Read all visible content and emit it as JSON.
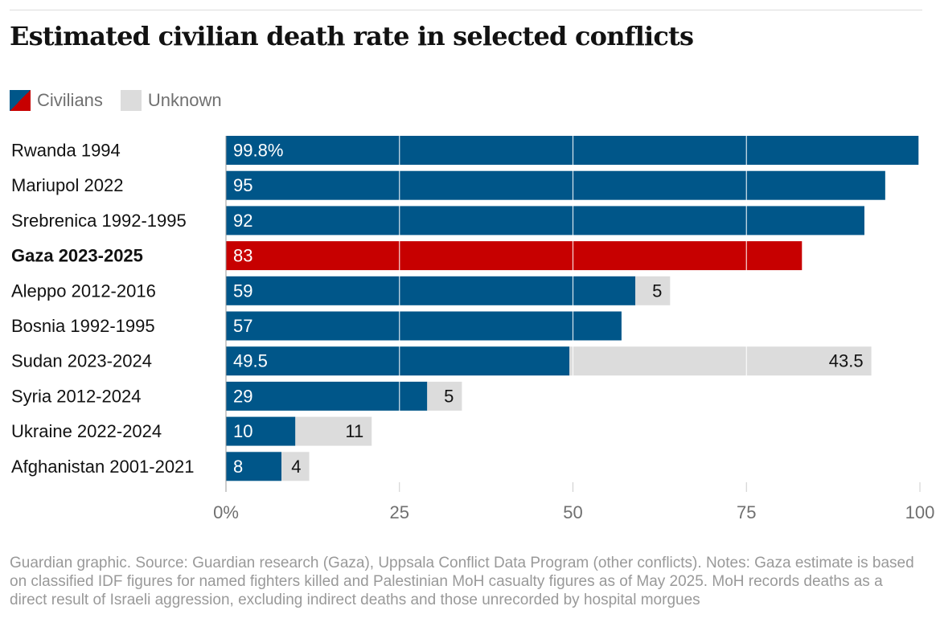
{
  "title": "Estimated civilian death rate in selected conflicts",
  "legend": {
    "civilians": "Civilians",
    "unknown": "Unknown"
  },
  "colors": {
    "civilians": "#005689",
    "highlight": "#c70000",
    "unknown": "#dcdcdc"
  },
  "footer": "Guardian graphic. Source: Guardian research (Gaza), Uppsala Conflict Data Program (other conflicts). Notes: Gaza estimate is based on classified IDF figures for named fighters killed and Palestinian MoH casualty figures as of May 2025. MoH records deaths as a direct result of Israeli aggression, excluding indirect deaths and those unrecorded by hospital morgues",
  "chart_data": {
    "type": "bar",
    "orientation": "horizontal",
    "stacked": true,
    "title": "Estimated civilian death rate in selected conflicts",
    "categories": [
      "Rwanda 1994",
      "Mariupol 2022",
      "Srebrenica 1992-1995",
      "Gaza 2023-2025",
      "Aleppo 2012-2016",
      "Bosnia 1992-1995",
      "Sudan 2023-2024",
      "Syria 2012-2024",
      "Ukraine 2022-2024",
      "Afghanistan 2001-2021"
    ],
    "highlight": "Gaza 2023-2025",
    "series": [
      {
        "name": "Civilians",
        "values": [
          99.8,
          95,
          92,
          83,
          59,
          57,
          49.5,
          29,
          10,
          8
        ],
        "labels": [
          "99.8%",
          "95",
          "92",
          "83",
          "59",
          "57",
          "49.5",
          "29",
          "10",
          "8"
        ]
      },
      {
        "name": "Unknown",
        "values": [
          0,
          0,
          0,
          0,
          5,
          0,
          43.5,
          5,
          11,
          4
        ],
        "labels": [
          "",
          "",
          "",
          "",
          "5",
          "",
          "43.5",
          "5",
          "11",
          "4"
        ]
      }
    ],
    "xlim": [
      0,
      100
    ],
    "xticks": [
      0,
      25,
      50,
      75,
      100
    ],
    "xtick_labels": [
      "0%",
      "25",
      "50",
      "75",
      "100"
    ],
    "grid": true,
    "legend_position": "top-left"
  }
}
